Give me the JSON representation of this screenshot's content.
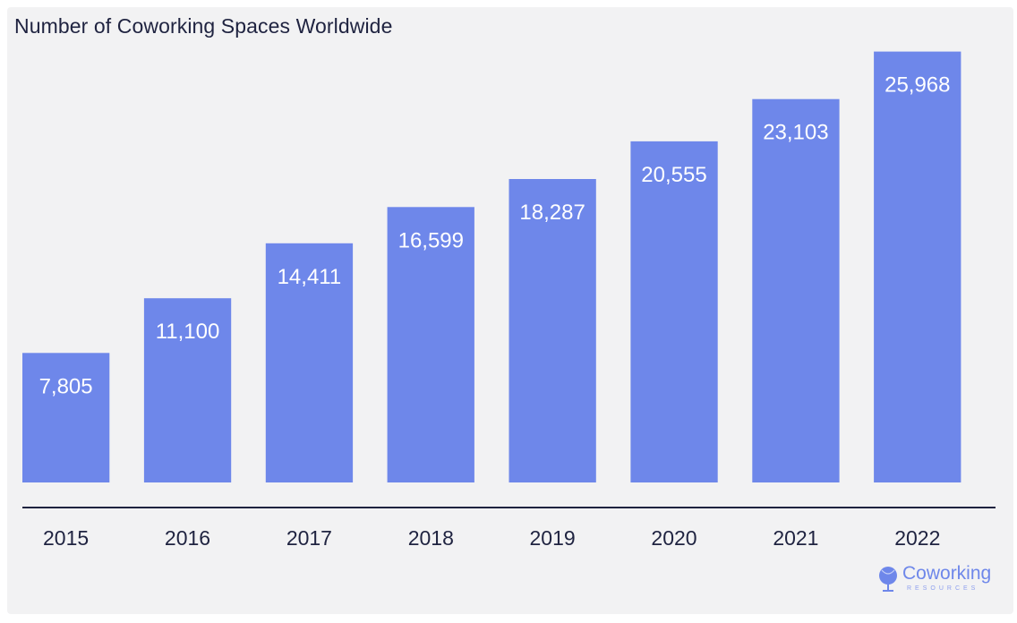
{
  "chart_data": {
    "type": "bar",
    "title": "Number of Coworking Spaces Worldwide",
    "categories": [
      "2015",
      "2016",
      "2017",
      "2018",
      "2019",
      "2020",
      "2021",
      "2022"
    ],
    "values": [
      7805,
      11100,
      14411,
      16599,
      18287,
      20555,
      23103,
      25968
    ],
    "value_labels": [
      "7,805",
      "11,100",
      "14,411",
      "16,599",
      "18,287",
      "20,555",
      "23,103",
      "25,968"
    ],
    "xlabel": "",
    "ylabel": "",
    "ylim": [
      0,
      26000
    ],
    "grid": false,
    "legend": "none",
    "bar_color": "#6e87ea",
    "text_color": "#1f2340"
  },
  "branding": {
    "logo_name": "Coworking",
    "logo_sub": "RESOURCES",
    "logo_icon": "globe-pin-icon"
  }
}
